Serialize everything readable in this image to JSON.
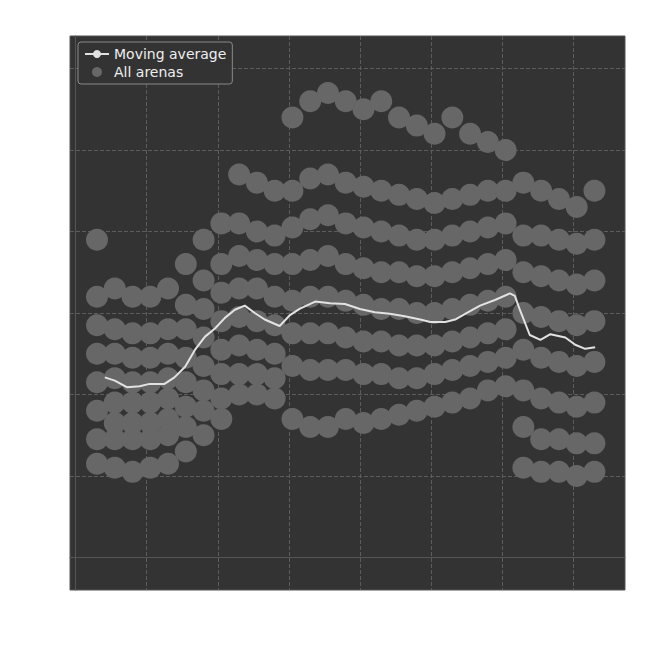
{
  "chart_data": {
    "type": "scatter",
    "xlim": [
      -0.08,
      7.73
    ],
    "xticks": [
      1,
      2,
      3,
      4,
      5,
      6,
      7
    ],
    "ylim": [
      -0.4,
      6.4
    ],
    "yticks": [
      0,
      1,
      2,
      3,
      4,
      5,
      6
    ],
    "grid": true,
    "legend": "upper left",
    "tick_labels": false,
    "series": [
      {
        "name": "Moving average",
        "type": "line",
        "color": "#e2e2e2",
        "line_style": "solid",
        "x": [
          0.41,
          0.55,
          0.72,
          0.9,
          1.04,
          1.25,
          1.39,
          1.54,
          1.68,
          1.82,
          1.96,
          2.1,
          2.24,
          2.38,
          2.52,
          2.66,
          2.87,
          3.01,
          3.15,
          3.37,
          3.58,
          3.79,
          4.0,
          4.21,
          4.42,
          4.63,
          4.85,
          4.99,
          5.2,
          5.34,
          5.48,
          5.69,
          5.9,
          6.11,
          6.18,
          6.25,
          6.39,
          6.54,
          6.68,
          6.89,
          7.03,
          7.17,
          7.31
        ],
        "values": [
          2.21,
          2.17,
          2.09,
          2.1,
          2.13,
          2.13,
          2.21,
          2.34,
          2.55,
          2.71,
          2.81,
          2.94,
          3.04,
          3.09,
          3.0,
          2.92,
          2.84,
          2.97,
          3.05,
          3.14,
          3.12,
          3.11,
          3.05,
          3.01,
          2.99,
          2.96,
          2.92,
          2.89,
          2.89,
          2.92,
          2.99,
          3.09,
          3.16,
          3.24,
          3.21,
          3.04,
          2.73,
          2.67,
          2.74,
          2.7,
          2.61,
          2.56,
          2.58
        ]
      },
      {
        "name": "All arenas",
        "type": "scatter",
        "color": "#676767",
        "marker": "circle",
        "x": [
          0.3,
          0.3,
          0.3,
          0.3,
          0.3,
          0.3,
          0.3,
          0.3,
          0.55,
          0.55,
          0.55,
          0.55,
          0.55,
          0.55,
          0.55,
          0.55,
          0.8,
          0.8,
          0.8,
          0.8,
          0.8,
          0.8,
          0.8,
          0.8,
          1.05,
          1.05,
          1.05,
          1.05,
          1.05,
          1.05,
          1.05,
          1.05,
          1.3,
          1.3,
          1.3,
          1.3,
          1.3,
          1.3,
          1.3,
          1.3,
          1.55,
          1.55,
          1.55,
          1.55,
          1.55,
          1.55,
          1.55,
          1.55,
          1.8,
          1.8,
          1.8,
          1.8,
          1.8,
          1.8,
          1.8,
          1.8,
          2.05,
          2.05,
          2.05,
          2.05,
          2.05,
          2.05,
          2.05,
          2.05,
          2.3,
          2.3,
          2.3,
          2.3,
          2.3,
          2.3,
          2.3,
          2.3,
          2.55,
          2.55,
          2.55,
          2.55,
          2.55,
          2.55,
          2.55,
          2.55,
          2.8,
          2.8,
          2.8,
          2.8,
          2.8,
          2.8,
          2.8,
          2.8,
          3.05,
          3.05,
          3.05,
          3.05,
          3.05,
          3.05,
          3.05,
          3.05,
          3.3,
          3.3,
          3.3,
          3.3,
          3.3,
          3.3,
          3.3,
          3.3,
          3.55,
          3.55,
          3.55,
          3.55,
          3.55,
          3.55,
          3.55,
          3.55,
          3.8,
          3.8,
          3.8,
          3.8,
          3.8,
          3.8,
          3.8,
          3.8,
          4.05,
          4.05,
          4.05,
          4.05,
          4.05,
          4.05,
          4.05,
          4.05,
          4.3,
          4.3,
          4.3,
          4.3,
          4.3,
          4.3,
          4.3,
          4.3,
          4.55,
          4.55,
          4.55,
          4.55,
          4.55,
          4.55,
          4.55,
          4.55,
          4.8,
          4.8,
          4.8,
          4.8,
          4.8,
          4.8,
          4.8,
          4.8,
          5.05,
          5.05,
          5.05,
          5.05,
          5.05,
          5.05,
          5.05,
          5.05,
          5.3,
          5.3,
          5.3,
          5.3,
          5.3,
          5.3,
          5.3,
          5.3,
          5.55,
          5.55,
          5.55,
          5.55,
          5.55,
          5.55,
          5.55,
          5.55,
          5.8,
          5.8,
          5.8,
          5.8,
          5.8,
          5.8,
          5.8,
          5.8,
          6.05,
          6.05,
          6.05,
          6.05,
          6.05,
          6.05,
          6.05,
          6.05,
          6.3,
          6.3,
          6.3,
          6.3,
          6.3,
          6.3,
          6.3,
          6.3,
          6.55,
          6.55,
          6.55,
          6.55,
          6.55,
          6.55,
          6.55,
          6.55,
          6.8,
          6.8,
          6.8,
          6.8,
          6.8,
          6.8,
          6.8,
          6.8,
          7.05,
          7.05,
          7.05,
          7.05,
          7.05,
          7.05,
          7.05,
          7.05,
          7.3,
          7.3,
          7.3,
          7.3,
          7.3,
          7.3,
          7.3,
          7.3
        ],
        "values": [
          3.9,
          3.2,
          2.85,
          2.5,
          2.15,
          1.8,
          1.45,
          1.15,
          3.3,
          2.8,
          2.5,
          2.2,
          1.9,
          1.65,
          1.45,
          1.1,
          3.2,
          2.75,
          2.45,
          2.15,
          1.9,
          1.65,
          1.45,
          1.05,
          3.2,
          2.75,
          2.45,
          2.15,
          1.9,
          1.65,
          1.45,
          1.1,
          3.3,
          2.8,
          2.5,
          2.2,
          1.95,
          1.7,
          1.5,
          1.15,
          3.6,
          3.1,
          2.8,
          2.45,
          2.15,
          1.85,
          1.6,
          1.3,
          3.9,
          3.4,
          3.05,
          2.7,
          2.35,
          2.05,
          1.8,
          1.5,
          4.1,
          3.6,
          3.25,
          2.9,
          2.55,
          2.25,
          1.95,
          1.7,
          4.7,
          4.1,
          3.7,
          3.3,
          2.95,
          2.6,
          2.25,
          2.0,
          4.6,
          4.0,
          3.65,
          3.3,
          2.9,
          2.55,
          2.25,
          2.0,
          4.5,
          3.95,
          3.6,
          3.2,
          2.85,
          2.5,
          2.2,
          1.95,
          5.4,
          4.5,
          4.05,
          3.6,
          3.15,
          2.75,
          2.35,
          1.7,
          5.6,
          4.65,
          4.15,
          3.65,
          3.2,
          2.75,
          2.3,
          1.6,
          5.7,
          4.7,
          4.2,
          3.7,
          3.2,
          2.75,
          2.3,
          1.6,
          5.6,
          4.6,
          4.1,
          3.6,
          3.15,
          2.7,
          2.3,
          1.7,
          5.5,
          4.55,
          4.05,
          3.55,
          3.1,
          2.65,
          2.25,
          1.65,
          5.6,
          4.5,
          4.0,
          3.5,
          3.05,
          2.65,
          2.25,
          1.7,
          5.4,
          4.45,
          3.95,
          3.5,
          3.05,
          2.6,
          2.2,
          1.75,
          5.3,
          4.4,
          3.9,
          3.45,
          3.0,
          2.6,
          2.2,
          1.8,
          5.2,
          4.35,
          3.9,
          3.45,
          3.0,
          2.6,
          2.25,
          1.85,
          5.4,
          4.4,
          3.95,
          3.5,
          3.05,
          2.65,
          2.3,
          1.9,
          5.2,
          4.45,
          4.0,
          3.55,
          3.1,
          2.7,
          2.35,
          1.95,
          5.1,
          4.5,
          4.05,
          3.6,
          3.15,
          2.75,
          2.4,
          2.05,
          5.0,
          4.5,
          4.1,
          3.65,
          3.2,
          2.8,
          2.45,
          2.1,
          4.6,
          3.95,
          3.5,
          3.0,
          2.55,
          2.05,
          1.6,
          1.1,
          4.5,
          3.95,
          3.45,
          2.95,
          2.45,
          1.95,
          1.45,
          1.05,
          4.4,
          3.9,
          3.4,
          2.9,
          2.4,
          1.9,
          1.45,
          1.05,
          4.3,
          3.85,
          3.35,
          2.85,
          2.35,
          1.85,
          1.4,
          1.0,
          4.5,
          3.9,
          3.4,
          2.9,
          2.4,
          1.9,
          1.4,
          1.05
        ]
      }
    ]
  }
}
